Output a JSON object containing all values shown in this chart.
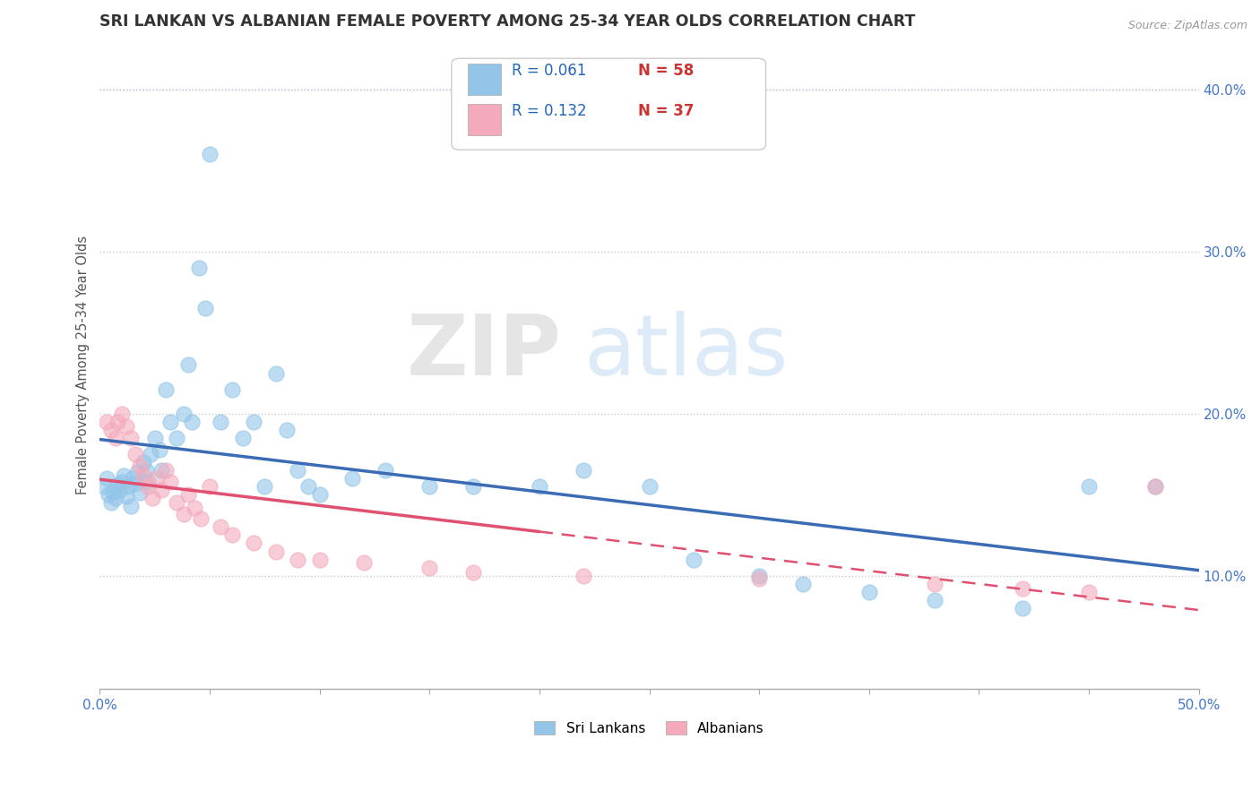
{
  "title": "SRI LANKAN VS ALBANIAN FEMALE POVERTY AMONG 25-34 YEAR OLDS CORRELATION CHART",
  "source": "Source: ZipAtlas.com",
  "ylabel": "Female Poverty Among 25-34 Year Olds",
  "xlim": [
    0.0,
    0.5
  ],
  "ylim": [
    0.03,
    0.43
  ],
  "xtick_positions": [
    0.0,
    0.05,
    0.1,
    0.15,
    0.2,
    0.25,
    0.3,
    0.35,
    0.4,
    0.45,
    0.5
  ],
  "xticklabels": [
    "0.0%",
    "",
    "",
    "",
    "",
    "",
    "",
    "",
    "",
    "",
    "50.0%"
  ],
  "ytick_positions": [
    0.1,
    0.2,
    0.3,
    0.4
  ],
  "yticklabels": [
    "10.0%",
    "20.0%",
    "30.0%",
    "40.0%"
  ],
  "sri_lankan_color": "#92C5E8",
  "albanian_color": "#F4AABB",
  "sri_lankan_trend_color": "#3B6BB5",
  "albanian_trend_color": "#E05070",
  "legend_r1": "R = 0.061",
  "legend_n1": "N = 58",
  "legend_r2": "R = 0.132",
  "legend_n2": "N = 37",
  "legend_label1": "Sri Lankans",
  "legend_label2": "Albanians",
  "watermark_zip": "ZIP",
  "watermark_atlas": "atlas",
  "title_fontsize": 12.5,
  "axis_label_fontsize": 10.5,
  "tick_fontsize": 11,
  "tick_color": "#4477CC",
  "sri_lankans_x": [
    0.002,
    0.003,
    0.004,
    0.005,
    0.006,
    0.007,
    0.008,
    0.009,
    0.01,
    0.011,
    0.012,
    0.013,
    0.014,
    0.015,
    0.016,
    0.017,
    0.018,
    0.02,
    0.021,
    0.022,
    0.023,
    0.025,
    0.027,
    0.028,
    0.03,
    0.032,
    0.035,
    0.038,
    0.04,
    0.042,
    0.045,
    0.048,
    0.05,
    0.055,
    0.06,
    0.065,
    0.07,
    0.075,
    0.08,
    0.085,
    0.09,
    0.095,
    0.1,
    0.115,
    0.13,
    0.15,
    0.17,
    0.2,
    0.22,
    0.25,
    0.27,
    0.3,
    0.32,
    0.35,
    0.38,
    0.42,
    0.45,
    0.48
  ],
  "sri_lankans_y": [
    0.155,
    0.16,
    0.15,
    0.145,
    0.152,
    0.148,
    0.156,
    0.153,
    0.158,
    0.162,
    0.149,
    0.155,
    0.143,
    0.16,
    0.157,
    0.164,
    0.151,
    0.17,
    0.165,
    0.158,
    0.175,
    0.185,
    0.178,
    0.165,
    0.215,
    0.195,
    0.185,
    0.2,
    0.23,
    0.195,
    0.29,
    0.265,
    0.36,
    0.195,
    0.215,
    0.185,
    0.195,
    0.155,
    0.225,
    0.19,
    0.165,
    0.155,
    0.15,
    0.16,
    0.165,
    0.155,
    0.155,
    0.155,
    0.165,
    0.155,
    0.11,
    0.1,
    0.095,
    0.09,
    0.085,
    0.08,
    0.155,
    0.155
  ],
  "albanians_x": [
    0.003,
    0.005,
    0.007,
    0.008,
    0.01,
    0.012,
    0.014,
    0.016,
    0.018,
    0.02,
    0.022,
    0.024,
    0.026,
    0.028,
    0.03,
    0.032,
    0.035,
    0.038,
    0.04,
    0.043,
    0.046,
    0.05,
    0.055,
    0.06,
    0.07,
    0.08,
    0.09,
    0.1,
    0.12,
    0.15,
    0.17,
    0.22,
    0.3,
    0.38,
    0.42,
    0.45,
    0.48
  ],
  "albanians_y": [
    0.195,
    0.19,
    0.185,
    0.195,
    0.2,
    0.192,
    0.185,
    0.175,
    0.168,
    0.162,
    0.155,
    0.148,
    0.16,
    0.153,
    0.165,
    0.158,
    0.145,
    0.138,
    0.15,
    0.142,
    0.135,
    0.155,
    0.13,
    0.125,
    0.12,
    0.115,
    0.11,
    0.11,
    0.108,
    0.105,
    0.102,
    0.1,
    0.098,
    0.095,
    0.092,
    0.09,
    0.155
  ],
  "marker_size": 150
}
